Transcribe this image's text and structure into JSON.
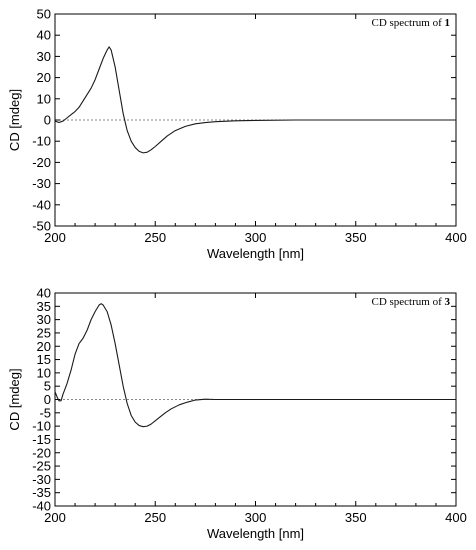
{
  "chart_data": [
    {
      "type": "line",
      "title_prefix": "CD spectrum of ",
      "title_compound": "1",
      "xlabel": "Wavelength [nm]",
      "ylabel": "CD [mdeg]",
      "xlim": [
        200,
        400
      ],
      "ylim": [
        -50,
        50
      ],
      "xticks": [
        "200",
        "250",
        "300",
        "350",
        "400"
      ],
      "yticks": [
        "-50",
        "-40",
        "-30",
        "-20",
        "-10",
        "0",
        "10",
        "20",
        "30",
        "40",
        "50"
      ],
      "zero_line": true,
      "grid": false,
      "series": [
        {
          "x": [
            200,
            202,
            204,
            206,
            208,
            210,
            212,
            214,
            216,
            218,
            220,
            222,
            224,
            226,
            227,
            228,
            230,
            232,
            234,
            236,
            238,
            240,
            242,
            244,
            246,
            248,
            250,
            253,
            256,
            260,
            265,
            270,
            275,
            280,
            290,
            300,
            320,
            340,
            360,
            380,
            400
          ],
          "y": [
            -0.5,
            -1.2,
            -0.5,
            1,
            2.5,
            4,
            6,
            9,
            12,
            15,
            19,
            24,
            29,
            33,
            34.5,
            33,
            25,
            14,
            3,
            -5,
            -10,
            -13,
            -14.8,
            -15.5,
            -15.2,
            -14,
            -12.5,
            -10,
            -7.5,
            -5,
            -3,
            -1.8,
            -1.2,
            -0.8,
            -0.4,
            -0.2,
            0,
            0,
            0,
            0,
            0
          ]
        }
      ]
    },
    {
      "type": "line",
      "title_prefix": "CD spectrum of ",
      "title_compound": "3",
      "xlabel": "Wavelength [nm]",
      "ylabel": "CD [mdeg]",
      "xlim": [
        200,
        400
      ],
      "ylim": [
        -40,
        40
      ],
      "xticks": [
        "200",
        "250",
        "300",
        "350",
        "400"
      ],
      "yticks": [
        "-40",
        "-35",
        "-30",
        "-25",
        "-20",
        "-15",
        "-10",
        "-5",
        "0",
        "5",
        "10",
        "15",
        "20",
        "25",
        "30",
        "35",
        "40"
      ],
      "zero_line": true,
      "grid": false,
      "series": [
        {
          "x": [
            200,
            201,
            202,
            203,
            204,
            206,
            208,
            210,
            212,
            214,
            216,
            218,
            220,
            222,
            223,
            224,
            226,
            228,
            230,
            232,
            234,
            236,
            238,
            240,
            242,
            244,
            246,
            248,
            250,
            252,
            255,
            258,
            262,
            266,
            270,
            275,
            280,
            290,
            300,
            320,
            340,
            360,
            380,
            400
          ],
          "y": [
            3,
            1,
            -0.5,
            -0.5,
            2,
            6,
            11,
            17,
            21,
            23,
            26,
            30,
            33,
            35.5,
            36,
            35.5,
            33,
            28,
            21,
            13,
            5,
            -1.5,
            -6,
            -8.5,
            -9.8,
            -10.2,
            -10,
            -9.2,
            -8,
            -6.8,
            -5,
            -3.5,
            -2,
            -1,
            -0.2,
            0.1,
            0,
            0,
            0,
            0,
            0,
            0,
            0,
            0
          ]
        }
      ]
    }
  ]
}
